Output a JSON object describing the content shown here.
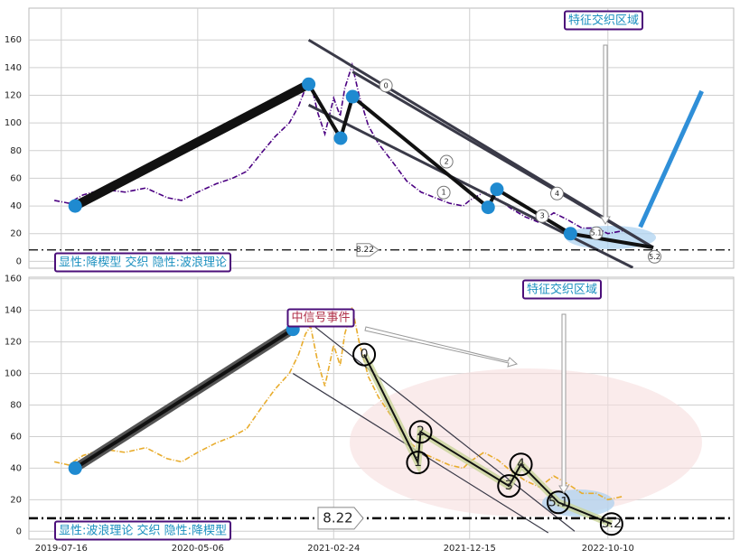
{
  "chart_data": [
    {
      "type": "line",
      "x": [
        "2019-07-01",
        "2019-08-01",
        "2019-09-01",
        "2019-10-15",
        "2019-12-01",
        "2020-01-15",
        "2020-03-01",
        "2020-04-01",
        "2020-05-06",
        "2020-06-15",
        "2020-07-20",
        "2020-08-20",
        "2020-09-20",
        "2020-10-20",
        "2020-11-20",
        "2020-12-10",
        "2020-12-25",
        "2021-01-05",
        "2021-01-20",
        "2021-02-05",
        "2021-02-24",
        "2021-03-10",
        "2021-03-20",
        "2021-04-05",
        "2021-04-20",
        "2021-05-10",
        "2021-06-01",
        "2021-07-01",
        "2021-08-01",
        "2021-09-01",
        "2021-10-01",
        "2021-11-01",
        "2021-12-01",
        "2021-12-15",
        "2022-01-15",
        "2022-02-15",
        "2022-03-15",
        "2022-04-15",
        "2022-05-15",
        "2022-06-15",
        "2022-07-15",
        "2022-08-15",
        "2022-09-15",
        "2022-10-10",
        "2022-11-10"
      ],
      "series": [
        {
          "color": "#4b0082",
          "values": [
            44,
            42,
            48,
            52,
            50,
            53,
            46,
            44,
            50,
            56,
            60,
            65,
            78,
            90,
            100,
            112,
            125,
            130,
            108,
            92,
            118,
            105,
            125,
            142,
            120,
            98,
            85,
            72,
            58,
            50,
            46,
            42,
            40,
            44,
            50,
            45,
            38,
            32,
            28,
            35,
            30,
            24,
            24,
            20,
            22
          ]
        }
      ],
      "ylim": [
        -5,
        183
      ],
      "yticks": [
        0,
        20,
        40,
        60,
        80,
        100,
        120,
        140,
        160
      ],
      "grid": true,
      "threshold": 8.22,
      "pivots": {
        "x": [
          "2019-08-15",
          "2021-01-01",
          "2021-03-11",
          "2021-04-06",
          "2022-01-24",
          "2022-02-12",
          "2022-07-21"
        ],
        "y": [
          40,
          128,
          89,
          119,
          39,
          52,
          20
        ]
      },
      "zigzag": {
        "x": [
          "2019-08-15",
          "2021-01-01",
          "2021-03-11",
          "2021-04-06",
          "2022-01-24",
          "2022-02-12",
          "2022-07-21",
          "2023-01-16"
        ],
        "y": [
          40,
          128,
          89,
          119,
          39,
          52,
          20,
          10
        ]
      },
      "trendlines": [
        {
          "x": [
            "2021-01-01",
            "2023-01-16"
          ],
          "y": [
            160,
            10
          ]
        },
        {
          "x": [
            "2021-01-01",
            "2022-12-03"
          ],
          "y": [
            113,
            -4.6
          ]
        },
        {
          "x": [
            "2021-04-06",
            "2023-01-16"
          ],
          "y": [
            137,
            10
          ]
        },
        {
          "x": [
            "2022-12-19",
            "2023-05-01"
          ],
          "y": [
            24.8,
            123
          ]
        }
      ],
      "waves": {
        "labels": [
          "0",
          "1",
          "2",
          "3",
          "4",
          "5.1",
          "5.2"
        ],
        "x": [
          "2021-06-17",
          "2021-10-20",
          "2021-10-26",
          "2022-05-21",
          "2022-06-22",
          "2022-09-15",
          "2023-01-19"
        ],
        "y": [
          127,
          49.7,
          72,
          32.7,
          49,
          20.3,
          3.3
        ]
      },
      "region_label": "特征交织区域",
      "pattern_label": "显性:降楔型 交织 隐性:波浪理论"
    },
    {
      "type": "line",
      "series": [
        {
          "color": "#e8ac2c",
          "values": [
            44,
            42,
            48,
            52,
            50,
            53,
            46,
            44,
            50,
            56,
            60,
            65,
            78,
            90,
            100,
            112,
            125,
            130,
            108,
            92,
            118,
            105,
            125,
            142,
            120,
            98,
            85,
            72,
            58,
            50,
            46,
            42,
            40,
            44,
            50,
            45,
            38,
            32,
            28,
            35,
            30,
            24,
            24,
            20,
            22
          ]
        }
      ],
      "xlim": [
        "2019-05-07",
        "2023-07-09"
      ],
      "xticks": [
        "2019-07-16",
        "2020-05-06",
        "2021-02-24",
        "2021-12-15",
        "2022-10-10"
      ],
      "ylim": [
        -5,
        161
      ],
      "yticks": [
        0,
        20,
        40,
        60,
        80,
        100,
        120,
        140,
        160
      ],
      "grid": true,
      "threshold": 8.22,
      "pivots": {
        "x": [
          "2019-08-15",
          "2020-11-28"
        ],
        "y": [
          40,
          128
        ]
      },
      "zigzag": {
        "x": [
          "2021-05-01",
          "2021-08-25",
          "2021-08-31",
          "2022-03-10",
          "2022-04-05",
          "2022-06-25",
          "2022-10-18"
        ],
        "y": [
          112,
          43.6,
          63,
          28.7,
          42.4,
          18.3,
          4.6
        ]
      },
      "trendlines": [
        {
          "x": [
            "2019-08-15",
            "2020-11-28"
          ],
          "y": [
            40,
            128
          ]
        },
        {
          "x": [
            "2020-11-28",
            "2022-07-30"
          ],
          "y": [
            140.5,
            0
          ]
        },
        {
          "x": [
            "2020-11-28",
            "2022-06-03"
          ],
          "y": [
            100,
            -1
          ]
        }
      ],
      "waves": {
        "labels": [
          "0",
          "1",
          "2",
          "3",
          "4",
          "5.1",
          "5.2"
        ],
        "x": [
          "2021-05-01",
          "2021-08-25",
          "2021-08-31",
          "2022-03-10",
          "2022-04-05",
          "2022-06-25",
          "2022-10-18"
        ],
        "y": [
          112,
          43.6,
          63,
          28.7,
          42.4,
          18.3,
          4.6
        ]
      },
      "region_label": "特征交织区域",
      "event_label": "中信号事件",
      "pattern_label": "显性:波浪理论 交织 隐性:降楔型"
    }
  ]
}
